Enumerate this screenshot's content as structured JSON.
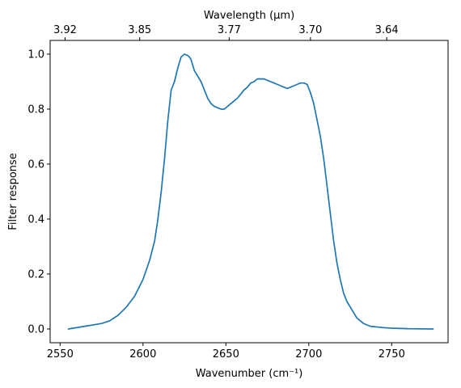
{
  "chart_data": {
    "type": "line",
    "xlabel": "Wavenumber (cm⁻¹)",
    "ylabel": "Filter response",
    "top_xlabel": "Wavelength (µm)",
    "xlim": [
      2544,
      2784
    ],
    "ylim": [
      -0.05,
      1.05
    ],
    "grid": false,
    "line_color": "#1f77b4",
    "bottom_ticks": [
      {
        "value": 2550,
        "label": "2550"
      },
      {
        "value": 2600,
        "label": "2600"
      },
      {
        "value": 2650,
        "label": "2650"
      },
      {
        "value": 2700,
        "label": "2700"
      },
      {
        "value": 2750,
        "label": "2750"
      }
    ],
    "left_ticks": [
      {
        "value": 0.0,
        "label": "0.0"
      },
      {
        "value": 0.2,
        "label": "0.2"
      },
      {
        "value": 0.4,
        "label": "0.4"
      },
      {
        "value": 0.6,
        "label": "0.6"
      },
      {
        "value": 0.8,
        "label": "0.8"
      },
      {
        "value": 1.0,
        "label": "1.0"
      }
    ],
    "top_ticks": [
      {
        "value": 2553,
        "label": "3.92"
      },
      {
        "value": 2598,
        "label": "3.85"
      },
      {
        "value": 2652,
        "label": "3.77"
      },
      {
        "value": 2701,
        "label": "3.70"
      },
      {
        "value": 2747,
        "label": "3.64"
      }
    ],
    "x": [
      2555,
      2565,
      2575,
      2580,
      2585,
      2590,
      2595,
      2600,
      2604,
      2607,
      2609,
      2611,
      2613,
      2615,
      2617,
      2619,
      2621,
      2623,
      2625,
      2627,
      2628,
      2629,
      2630,
      2631,
      2633,
      2635,
      2637,
      2639,
      2641,
      2643,
      2645,
      2647,
      2649,
      2651,
      2653,
      2655,
      2657,
      2659,
      2661,
      2663,
      2665,
      2667,
      2669,
      2671,
      2673,
      2675,
      2677,
      2679,
      2681,
      2683,
      2685,
      2687,
      2689,
      2691,
      2693,
      2695,
      2697,
      2699,
      2701,
      2703,
      2705,
      2707,
      2709,
      2711,
      2713,
      2715,
      2717,
      2719,
      2721,
      2723,
      2725,
      2727,
      2729,
      2731,
      2733,
      2735,
      2737,
      2740,
      2745,
      2750,
      2760,
      2775
    ],
    "y": [
      0.0,
      0.01,
      0.02,
      0.03,
      0.05,
      0.08,
      0.12,
      0.18,
      0.25,
      0.32,
      0.4,
      0.5,
      0.62,
      0.76,
      0.87,
      0.9,
      0.95,
      0.99,
      1.0,
      0.995,
      0.99,
      0.98,
      0.96,
      0.94,
      0.92,
      0.9,
      0.87,
      0.84,
      0.82,
      0.81,
      0.805,
      0.8,
      0.8,
      0.81,
      0.82,
      0.83,
      0.84,
      0.855,
      0.87,
      0.88,
      0.895,
      0.9,
      0.91,
      0.91,
      0.91,
      0.905,
      0.9,
      0.895,
      0.89,
      0.885,
      0.88,
      0.875,
      0.88,
      0.885,
      0.89,
      0.895,
      0.895,
      0.89,
      0.86,
      0.82,
      0.76,
      0.7,
      0.62,
      0.52,
      0.42,
      0.32,
      0.24,
      0.18,
      0.13,
      0.1,
      0.08,
      0.06,
      0.04,
      0.03,
      0.02,
      0.015,
      0.01,
      0.008,
      0.005,
      0.003,
      0.001,
      0.0
    ]
  }
}
